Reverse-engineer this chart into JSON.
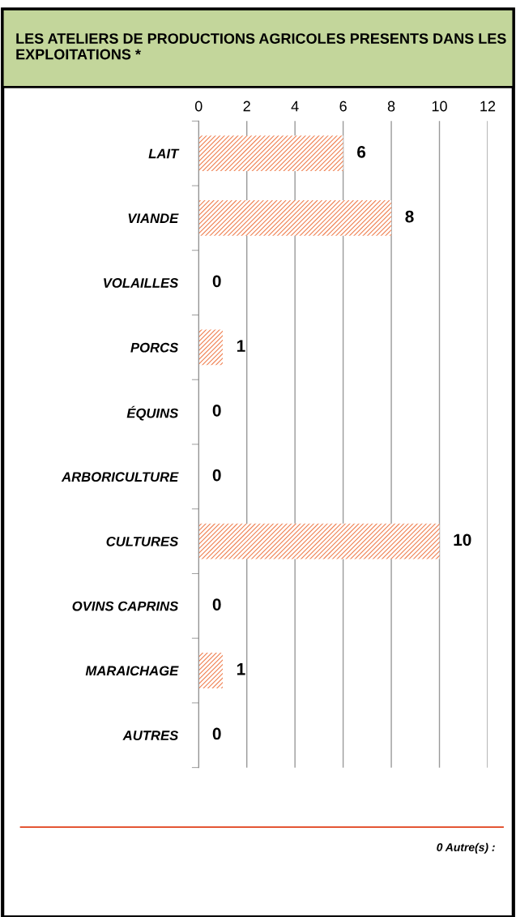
{
  "chart_data": {
    "type": "bar",
    "orientation": "horizontal",
    "title": "LES ATELIERS DE PRODUCTIONS AGRICOLES PRESENTS DANS LES EXPLOITATIONS *",
    "categories": [
      "LAIT",
      "VIANDE",
      "VOLAILLES",
      "PORCS",
      "ÉQUINS",
      "ARBORICULTURE",
      "CULTURES",
      "OVINS CAPRINS",
      "MARAICHAGE",
      "AUTRES"
    ],
    "values": [
      6,
      8,
      0,
      1,
      0,
      0,
      10,
      0,
      1,
      0
    ],
    "color": "#f07f50",
    "xlim": [
      0,
      12
    ],
    "xticks": [
      0,
      2,
      4,
      6,
      8,
      10,
      12
    ],
    "grid": "x",
    "data_labels": true,
    "annotations": [
      "0 Autre(s) :"
    ]
  }
}
